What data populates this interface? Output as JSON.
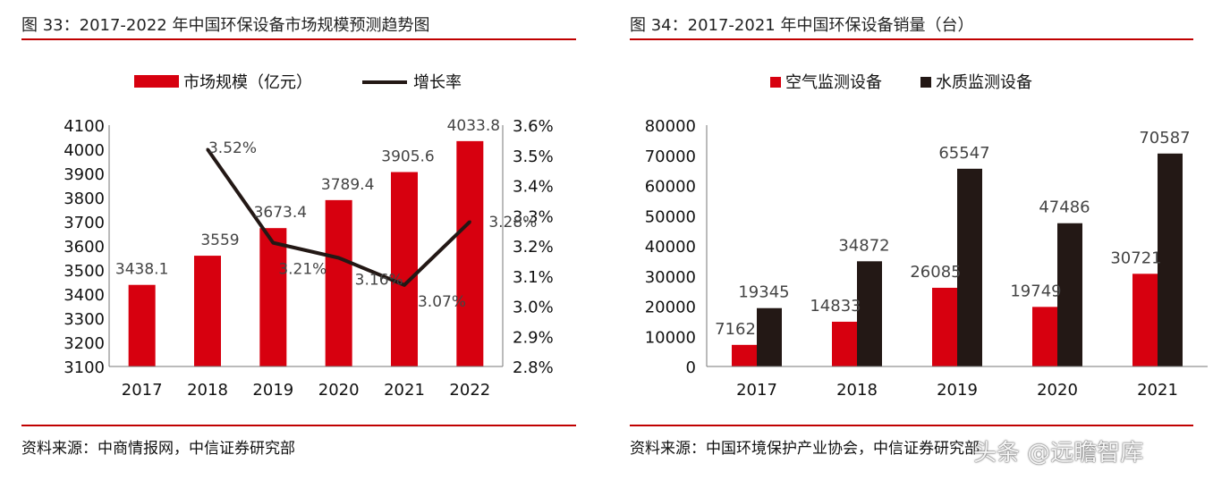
{
  "left": {
    "title": "图 33：2017-2022 年中国环保设备市场规模预测趋势图",
    "source": "资料来源：中商情报网，中信证券研究部"
  },
  "right": {
    "title": "图 34：2017-2021 年中国环保设备销量（台）",
    "source": "资料来源：中国环境保护产业协会，中信证券研究部"
  },
  "watermark": "头条 @远瞻智库",
  "colors": {
    "red": "#d7000f",
    "dark": "#231815",
    "rule": "#c00000"
  },
  "chart_data": [
    {
      "type": "bar",
      "categories": [
        "2017",
        "2018",
        "2019",
        "2020",
        "2021",
        "2022"
      ],
      "series": [
        {
          "name": "市场规模（亿元）",
          "type": "bar",
          "axis": "left",
          "values": [
            3438.1,
            3559,
            3673.4,
            3789.4,
            3905.6,
            4033.8
          ],
          "labels": [
            "3438.1",
            "3559",
            "3673.4",
            "3789.4",
            "3905.6",
            "4033.8"
          ]
        },
        {
          "name": "增长率",
          "type": "line",
          "axis": "right",
          "values": [
            null,
            3.52,
            3.21,
            3.16,
            3.07,
            3.28
          ],
          "labels": [
            null,
            "3.52%",
            "3.21%",
            "3.16%",
            "3.07%",
            "3.28%"
          ]
        }
      ],
      "ylim": [
        3100,
        4100
      ],
      "yticks": [
        "3100",
        "3200",
        "3300",
        "3400",
        "3500",
        "3600",
        "3700",
        "3800",
        "3900",
        "4000",
        "4100"
      ],
      "y2lim": [
        2.8,
        3.6
      ],
      "y2ticks": [
        "2.8%",
        "2.9%",
        "3.0%",
        "3.1%",
        "3.2%",
        "3.3%",
        "3.4%",
        "3.5%",
        "3.6%"
      ],
      "legend": "top-center",
      "grid": false
    },
    {
      "type": "bar",
      "categories": [
        "2017",
        "2018",
        "2019",
        "2020",
        "2021"
      ],
      "series": [
        {
          "name": "空气监测设备",
          "values": [
            7162,
            14833,
            26085,
            19749,
            30721
          ],
          "labels": [
            "7162",
            "14833",
            "26085",
            "19749",
            "30721"
          ]
        },
        {
          "name": "水质监测设备",
          "values": [
            19345,
            34872,
            65547,
            47486,
            70587
          ],
          "labels": [
            "19345",
            "34872",
            "65547",
            "47486",
            "70587"
          ]
        }
      ],
      "ylim": [
        0,
        80000
      ],
      "yticks": [
        "0",
        "10000",
        "20000",
        "30000",
        "40000",
        "50000",
        "60000",
        "70000",
        "80000"
      ],
      "legend": "top-center",
      "grid": false
    }
  ]
}
